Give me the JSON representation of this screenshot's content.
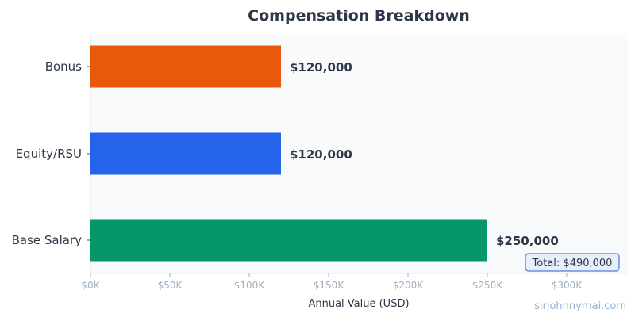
{
  "chart_data": {
    "type": "bar",
    "orientation": "horizontal",
    "title": "Compensation Breakdown",
    "xlabel": "Annual Value (USD)",
    "ylabel": "",
    "categories": [
      "Base Salary",
      "Equity/RSU",
      "Bonus"
    ],
    "values": [
      250000,
      120000,
      120000
    ],
    "value_labels": [
      "$250,000",
      "$120,000",
      "$120,000"
    ],
    "colors": [
      "#059669",
      "#2563eb",
      "#ea580c"
    ],
    "xlim": [
      0,
      350000
    ],
    "xticks": [
      0,
      50000,
      100000,
      150000,
      200000,
      250000,
      300000
    ],
    "xtick_labels": [
      "$0K",
      "$50K",
      "$100K",
      "$150K",
      "$200K",
      "$250K",
      "$300K"
    ],
    "grid": false,
    "plot_background": "#f8fafc",
    "annotation": "Total: $490,000"
  },
  "watermark": "sirjohnnymai.com"
}
